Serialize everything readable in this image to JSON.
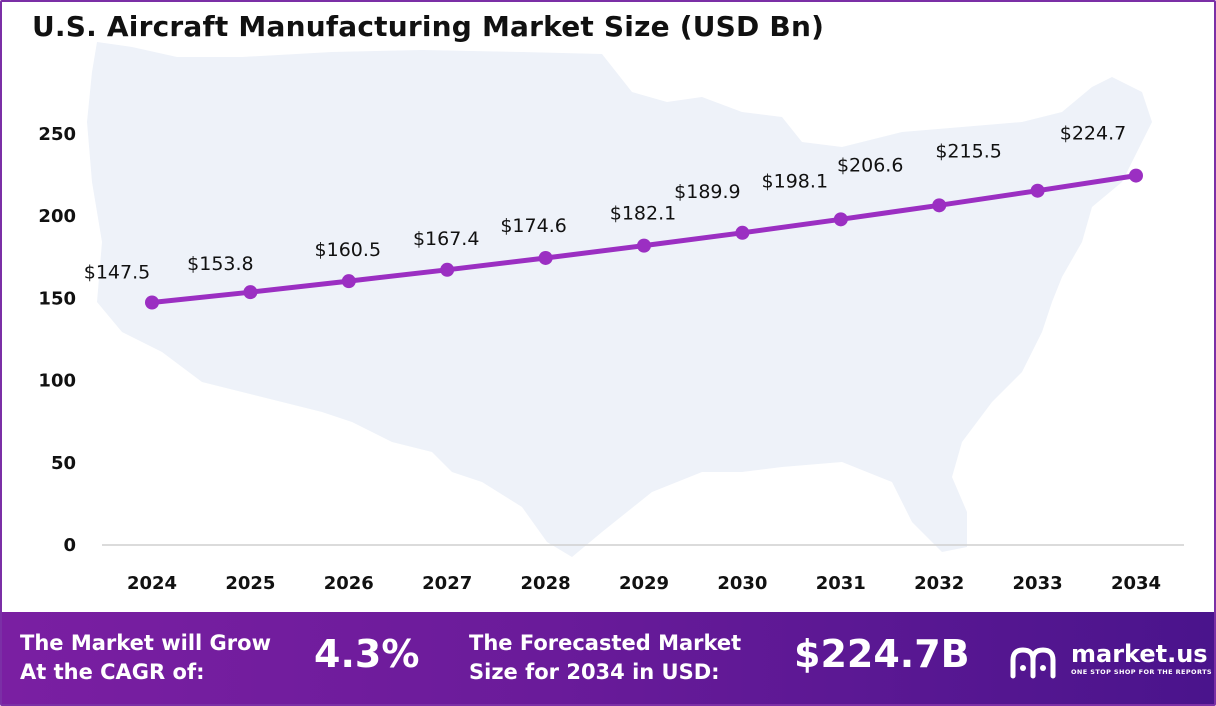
{
  "title": "U.S. Aircraft Manufacturing Market Size (USD Bn)",
  "colors": {
    "series": "#9b2fc2",
    "map": "#eef2f9",
    "footer_start": "#7a1fa2",
    "footer_end": "#4a148c"
  },
  "chart_data": {
    "type": "line",
    "title": "U.S. Aircraft Manufacturing Market Size (USD Bn)",
    "x": [
      "2024",
      "2025",
      "2026",
      "2027",
      "2028",
      "2029",
      "2030",
      "2031",
      "2032",
      "2033",
      "2034"
    ],
    "series": [
      {
        "values": [
          147.5,
          153.8,
          160.5,
          167.4,
          174.6,
          182.1,
          189.9,
          198.1,
          206.6,
          215.5,
          224.7
        ],
        "labels": [
          "$147.5",
          "$153.8",
          "$160.5",
          "$167.4",
          "$174.6",
          "$182.1",
          "$189.9",
          "$198.1",
          "$206.6",
          "$215.5",
          "$224.7"
        ]
      }
    ],
    "yticks": [
      "0",
      "50",
      "100",
      "150",
      "200",
      "250"
    ],
    "ylim": [
      0,
      250
    ],
    "grid": false,
    "legend": "none"
  },
  "footer": {
    "cagr_label_line1": "The Market will Grow",
    "cagr_label_line2": "At the CAGR of:",
    "cagr_value": "4.3%",
    "forecast_label_line1": "The Forecasted Market",
    "forecast_label_line2": "Size for 2034 in USD:",
    "forecast_value": "$224.7B",
    "brand_name": "market.us",
    "brand_tagline": "ONE STOP SHOP FOR THE REPORTS",
    "brand_icon": "market-us-logo-icon"
  }
}
